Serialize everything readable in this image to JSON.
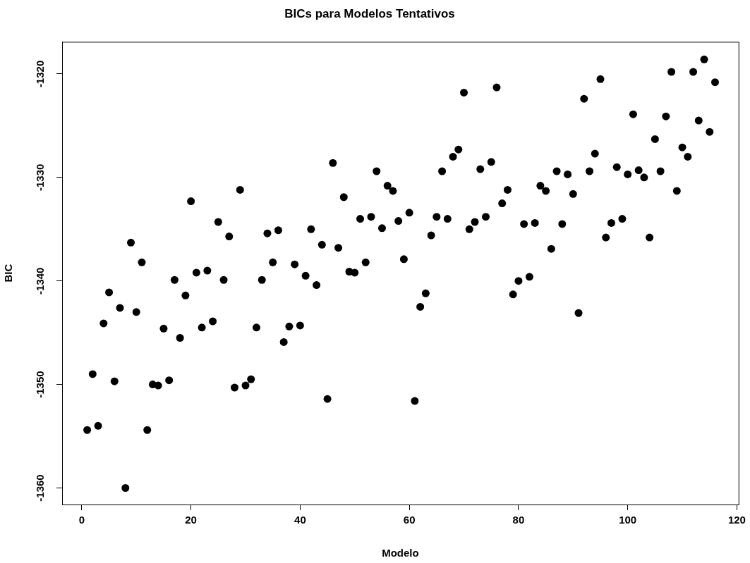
{
  "chart_data": {
    "type": "scatter",
    "title": "BICs para Modelos Tentativos",
    "xlabel": "Modelo",
    "ylabel": "BIC",
    "color": "#000000",
    "marker": "circle",
    "grid": false,
    "x": [
      1,
      2,
      3,
      4,
      5,
      6,
      7,
      8,
      9,
      10,
      11,
      12,
      13,
      14,
      15,
      16,
      17,
      18,
      19,
      20,
      21,
      22,
      23,
      24,
      25,
      26,
      27,
      28,
      29,
      30,
      31,
      32,
      33,
      34,
      35,
      36,
      37,
      38,
      39,
      40,
      41,
      42,
      43,
      44,
      45,
      46,
      47,
      48,
      49,
      50,
      51,
      52,
      53,
      54,
      55,
      56,
      57,
      58,
      59,
      60,
      61,
      62,
      63,
      64,
      65,
      66,
      67,
      68,
      69,
      70,
      71,
      72,
      73,
      74,
      75,
      76,
      77,
      78,
      79,
      80,
      81,
      82,
      83,
      84,
      85,
      86,
      87,
      88,
      89,
      90,
      91,
      92,
      93,
      94,
      95,
      96,
      97,
      98,
      99,
      100,
      101,
      102,
      103,
      104,
      105,
      106,
      107,
      108,
      109,
      110,
      111,
      112,
      113,
      114,
      115,
      116
    ],
    "values": [
      -1354.4,
      -1349.0,
      -1354.0,
      -1344.1,
      -1341.1,
      -1349.7,
      -1342.6,
      -1360.0,
      -1336.3,
      -1343.0,
      -1338.2,
      -1354.4,
      -1350.0,
      -1350.1,
      -1344.6,
      -1349.6,
      -1339.9,
      -1345.5,
      -1341.4,
      -1332.3,
      -1339.2,
      -1344.5,
      -1339.0,
      -1343.9,
      -1334.3,
      -1339.9,
      -1335.7,
      -1350.3,
      -1331.2,
      -1350.1,
      -1349.5,
      -1344.5,
      -1339.9,
      -1335.4,
      -1338.2,
      -1335.1,
      -1345.9,
      -1344.4,
      -1338.4,
      -1344.3,
      -1339.5,
      -1335.0,
      -1340.4,
      -1336.5,
      -1351.4,
      -1328.6,
      -1336.8,
      -1331.9,
      -1339.1,
      -1339.2,
      -1334.0,
      -1338.2,
      -1333.8,
      -1329.4,
      -1334.9,
      -1330.8,
      -1331.3,
      -1334.2,
      -1337.9,
      -1333.4,
      -1351.6,
      -1342.5,
      -1341.2,
      -1335.6,
      -1333.8,
      -1329.4,
      -1334.0,
      -1328.0,
      -1327.3,
      -1321.8,
      -1335.0,
      -1334.3,
      -1329.2,
      -1333.8,
      -1328.5,
      -1321.3,
      -1332.5,
      -1331.2,
      -1341.3,
      -1340.0,
      -1334.5,
      -1339.6,
      -1334.4,
      -1330.8,
      -1331.3,
      -1336.9,
      -1329.4,
      -1334.5,
      -1329.7,
      -1331.6,
      -1343.1,
      -1322.4,
      -1329.4,
      -1327.7,
      -1320.5,
      -1335.8,
      -1334.4,
      -1329.0,
      -1334.0,
      -1329.7,
      -1323.9,
      -1329.3,
      -1330.0,
      -1335.8,
      -1326.3,
      -1329.4,
      -1324.1,
      -1319.8,
      -1331.3,
      -1327.1,
      -1328.0,
      -1319.8,
      -1324.5,
      -1318.6,
      -1325.6,
      -1320.8
    ],
    "xlim": [
      -3.6,
      120.3
    ],
    "ylim": [
      -1361.6,
      -1316.9
    ],
    "xticks": [
      0,
      20,
      40,
      60,
      80,
      100,
      120
    ],
    "yticks": [
      -1360,
      -1350,
      -1340,
      -1330,
      -1320
    ]
  }
}
